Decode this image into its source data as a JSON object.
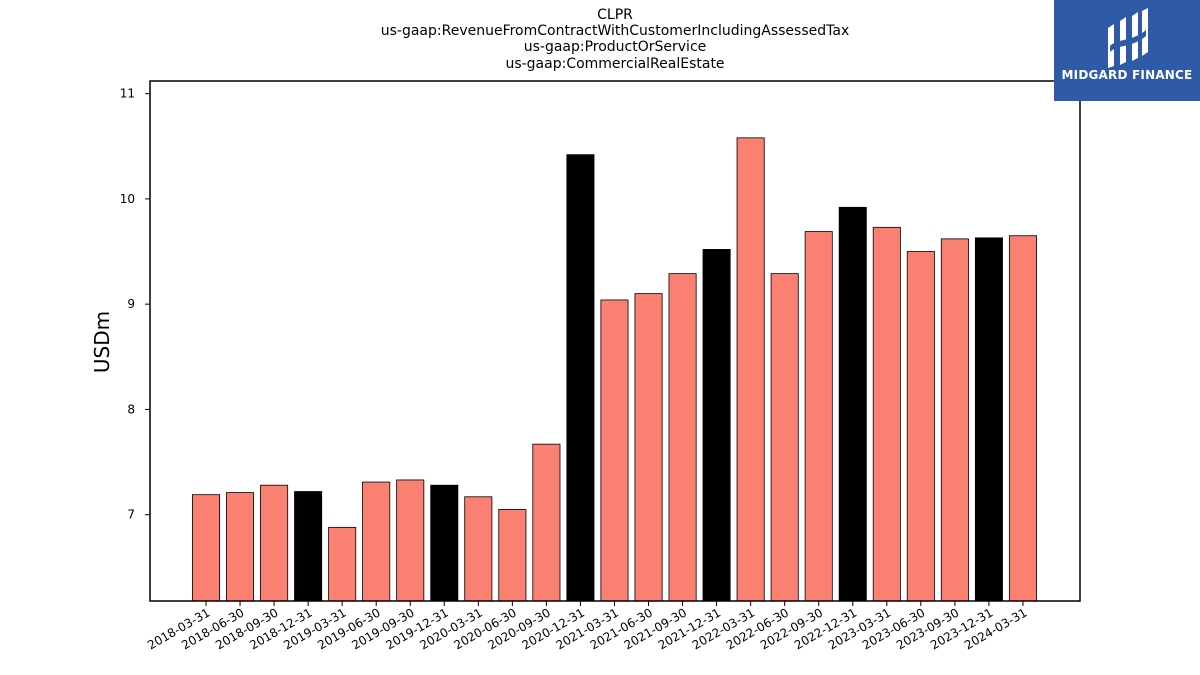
{
  "title_lines": [
    "CLPR",
    "us-gaap:RevenueFromContractWithCustomerIncludingAssessedTax",
    "us-gaap:ProductOrService",
    "us-gaap:CommercialRealEstate"
  ],
  "logo": {
    "text": "MIDGARD FINANCE",
    "background": "#2f5aa8"
  },
  "colors": {
    "quarter_bar": "#fa8072",
    "year_end_bar": "#000000",
    "bar_edge": "#000000"
  },
  "chart_data": {
    "type": "bar",
    "title": "CLPR\nus-gaap:RevenueFromContractWithCustomerIncludingAssessedTax\nus-gaap:ProductOrService\nus-gaap:CommercialRealEstate",
    "xlabel": "",
    "ylabel": "USDm",
    "ylim": [
      6.18,
      11.12
    ],
    "yticks": [
      7,
      8,
      9,
      10,
      11
    ],
    "grid": false,
    "categories": [
      "2018-03-31",
      "2018-06-30",
      "2018-09-30",
      "2018-12-31",
      "2019-03-31",
      "2019-06-30",
      "2019-09-30",
      "2019-12-31",
      "2020-03-31",
      "2020-06-30",
      "2020-09-30",
      "2020-12-31",
      "2021-03-31",
      "2021-06-30",
      "2021-09-30",
      "2021-12-31",
      "2022-03-31",
      "2022-06-30",
      "2022-09-30",
      "2022-12-31",
      "2023-03-31",
      "2023-06-30",
      "2023-09-30",
      "2023-12-31",
      "2024-03-31"
    ],
    "values": [
      7.19,
      7.21,
      7.28,
      7.22,
      6.88,
      7.31,
      7.33,
      7.28,
      7.17,
      7.05,
      7.67,
      10.42,
      9.04,
      9.1,
      9.29,
      9.52,
      10.58,
      9.29,
      9.69,
      9.92,
      9.73,
      9.5,
      9.62,
      9.63,
      9.65
    ],
    "year_end": [
      false,
      false,
      false,
      true,
      false,
      false,
      false,
      true,
      false,
      false,
      false,
      true,
      false,
      false,
      false,
      true,
      false,
      false,
      false,
      true,
      false,
      false,
      false,
      true,
      false
    ]
  }
}
